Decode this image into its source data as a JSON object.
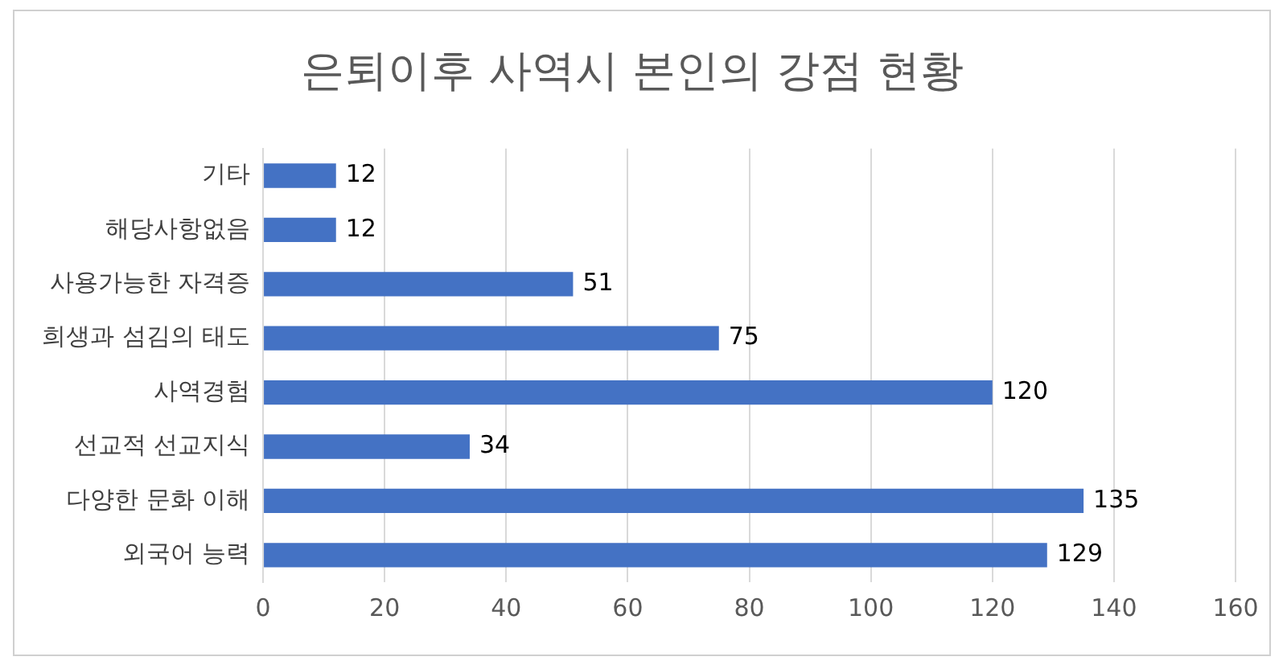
{
  "chart_data": {
    "type": "bar",
    "orientation": "horizontal",
    "title": "은퇴이후 사역시 본인의 강점 현황",
    "categories": [
      "기타",
      "해당사항없음",
      "사용가능한 자격증",
      "희생과 섬김의 태도",
      "사역경험",
      "선교적 선교지식",
      "다양한 문화 이해",
      "외국어 능력"
    ],
    "values": [
      12,
      12,
      51,
      75,
      120,
      34,
      135,
      129
    ],
    "color": "#4472c4",
    "xlim": [
      0,
      160
    ],
    "xticks": [
      0,
      20,
      40,
      60,
      80,
      100,
      120,
      140,
      160
    ],
    "grid": "x",
    "data_labels": true
  }
}
